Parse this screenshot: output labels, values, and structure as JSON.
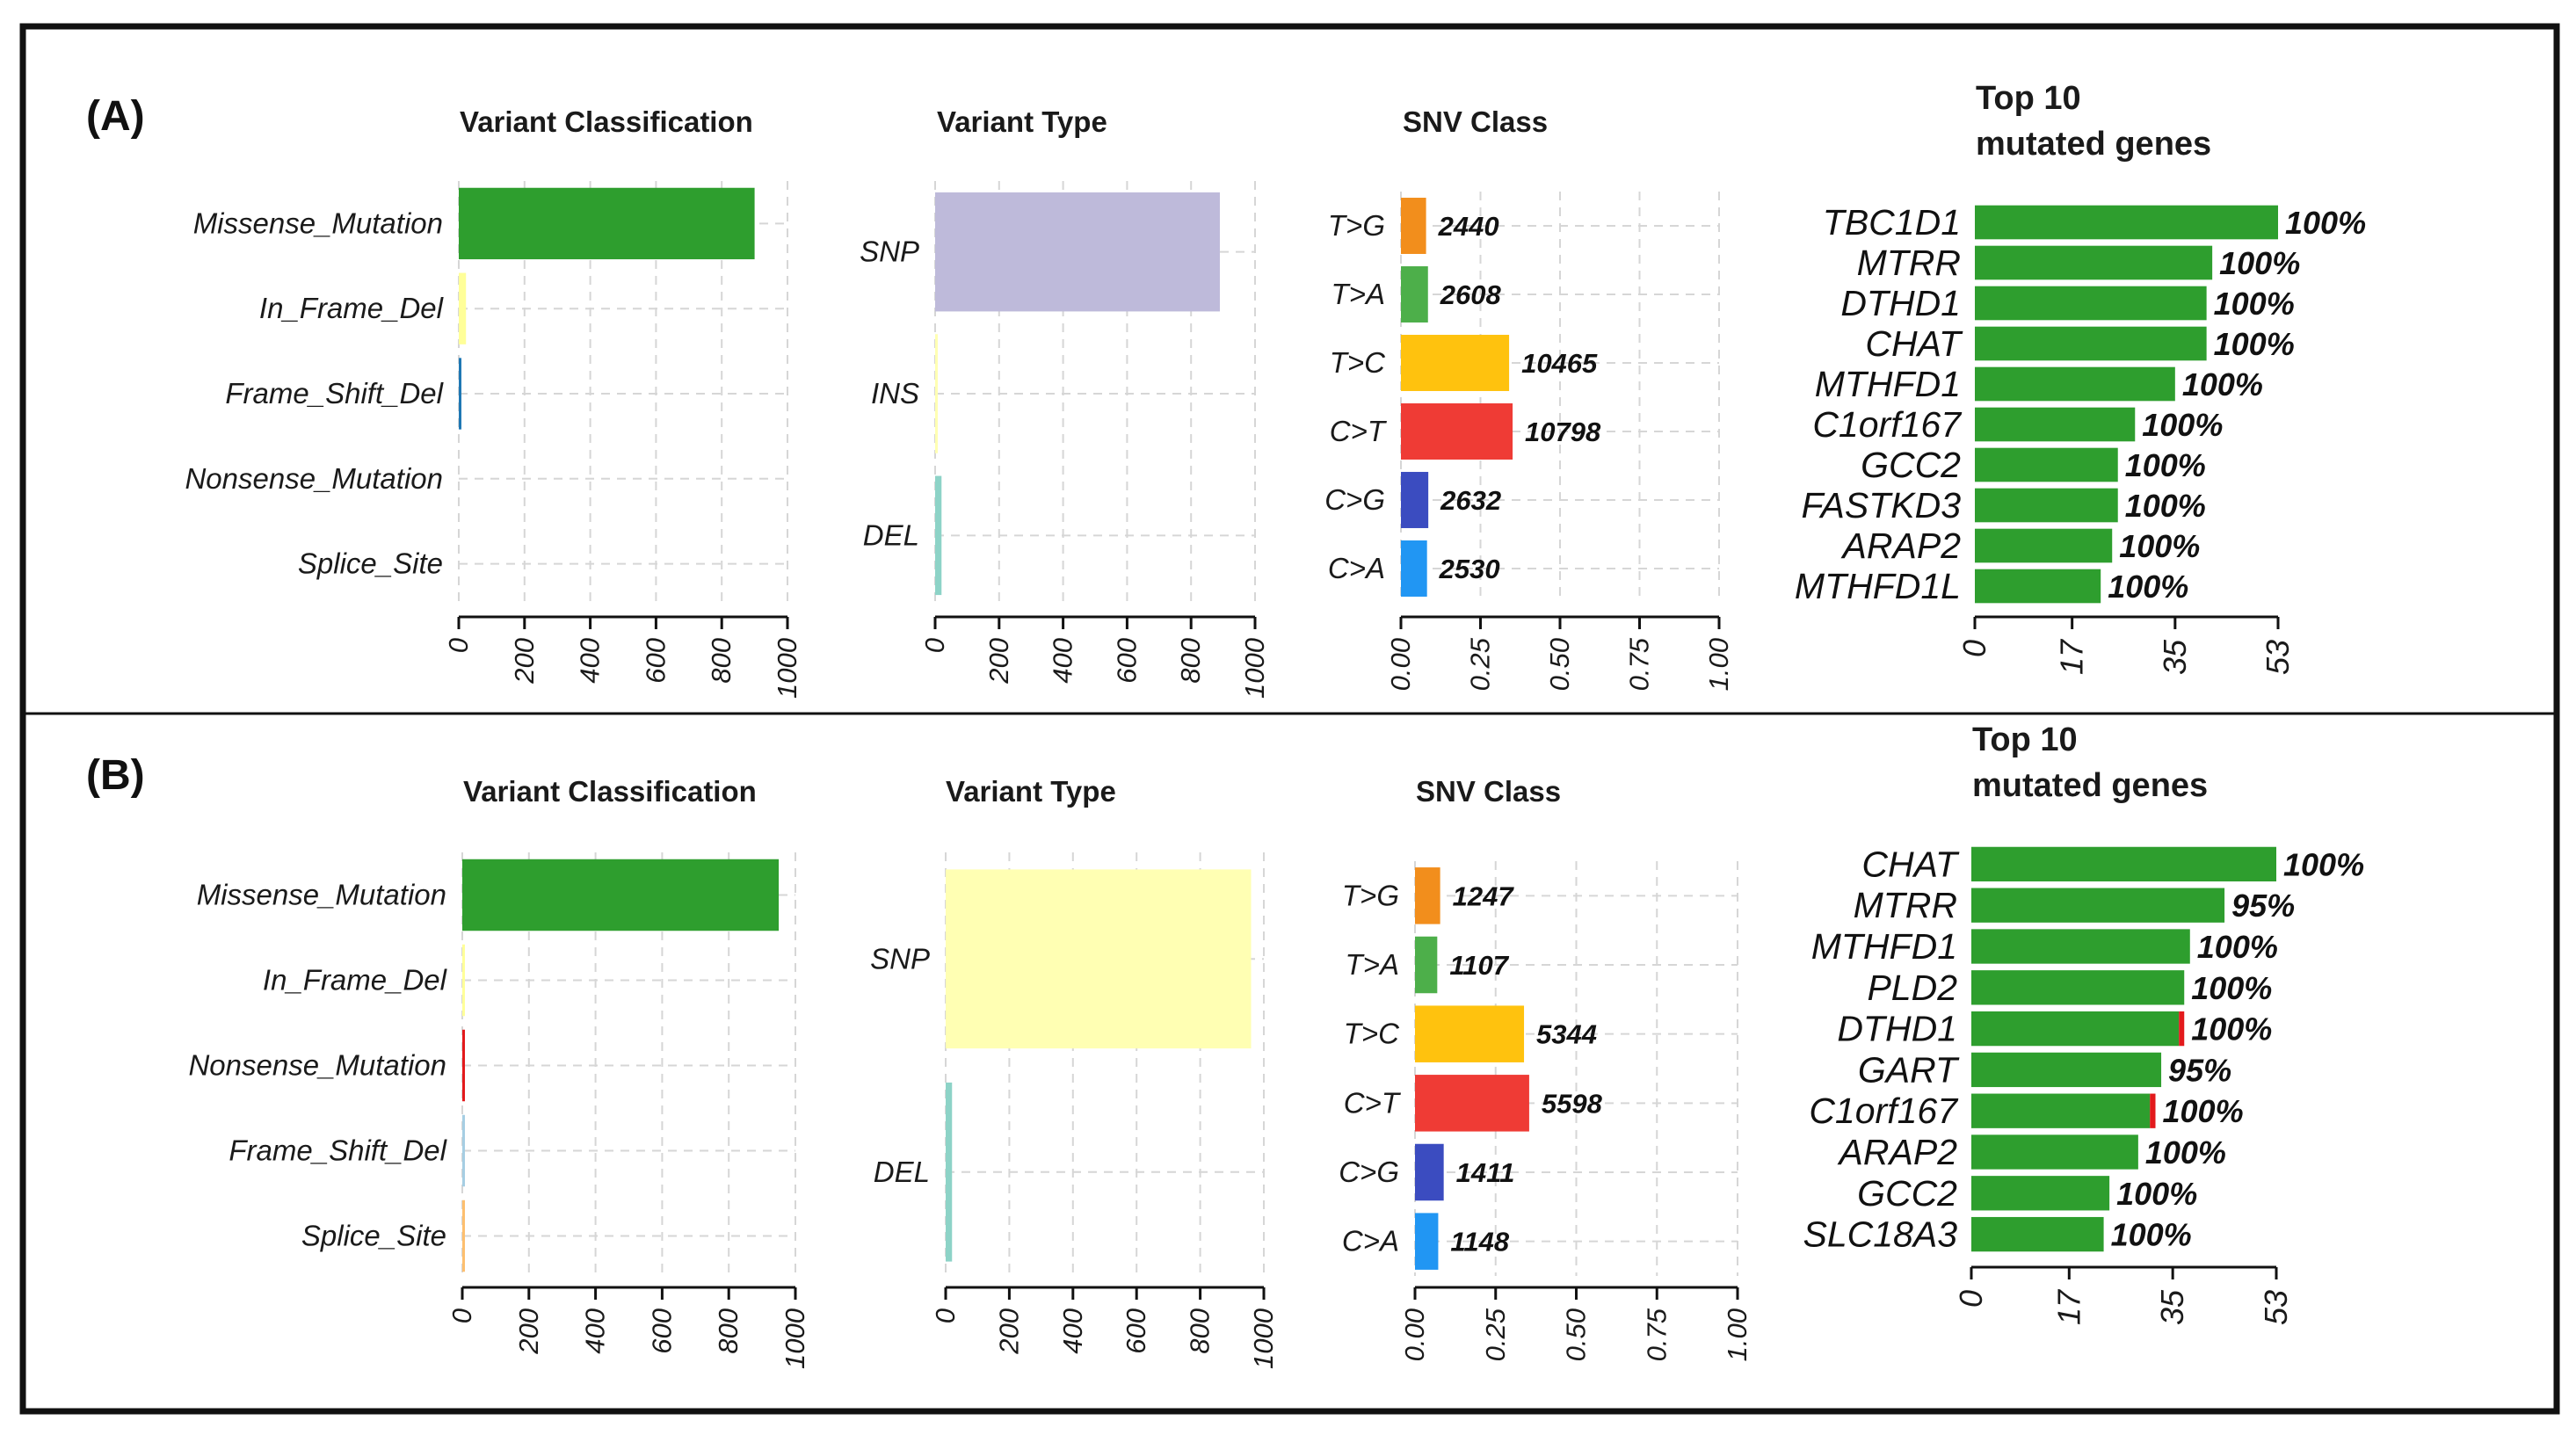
{
  "panels": [
    {
      "label": "(A)",
      "variant_classification": {
        "title": "Variant Classification",
        "categories": [
          "Missense_Mutation",
          "In_Frame_Del",
          "Frame_Shift_Del",
          "Nonsense_Mutation",
          "Splice_Site"
        ],
        "values": [
          900,
          22,
          8,
          0,
          0
        ],
        "colors": [
          "#2e9e2e",
          "#ffff99",
          "#1f78b4",
          "#e31a1c",
          "#ff7f00"
        ],
        "ticks": [
          "0",
          "200",
          "400",
          "600",
          "800",
          "1000"
        ],
        "xlim": [
          0,
          1000
        ]
      },
      "variant_type": {
        "title": "Variant Type",
        "categories": [
          "SNP",
          "INS",
          "DEL"
        ],
        "values": [
          890,
          1,
          20
        ],
        "colors": [
          "#bebada",
          "#ffffb3",
          "#8dd3c7"
        ],
        "ticks": [
          "0",
          "200",
          "400",
          "600",
          "800",
          "1000"
        ],
        "xlim": [
          0,
          1000
        ]
      },
      "snv_class": {
        "title": "SNV Class",
        "categories": [
          "T>G",
          "T>A",
          "T>C",
          "C>T",
          "C>G",
          "C>A"
        ],
        "counts": [
          "2440",
          "2608",
          "10465",
          "10798",
          "2632",
          "2530"
        ],
        "values": [
          0.079,
          0.085,
          0.34,
          0.351,
          0.086,
          0.082
        ],
        "colors": [
          "#f28e1c",
          "#4daf4a",
          "#ffc20e",
          "#ef3b35",
          "#3b4cc0",
          "#2196f3"
        ],
        "ticks": [
          "0.00",
          "0.25",
          "0.50",
          "0.75",
          "1.00"
        ],
        "xlim": [
          0,
          1
        ]
      },
      "top_genes": {
        "title_line1": "Top 10",
        "title_line2": "mutated genes",
        "genes": [
          "TBC1D1",
          "MTRR",
          "DTHD1",
          "CHAT",
          "MTHFD1",
          "C1orf167",
          "GCC2",
          "FASTKD3",
          "ARAP2",
          "MTHFD1L"
        ],
        "values": [
          53,
          41.5,
          40.5,
          40.5,
          35,
          28,
          25,
          25,
          24,
          22
        ],
        "labels": [
          "100%",
          "100%",
          "100%",
          "100%",
          "100%",
          "100%",
          "100%",
          "100%",
          "100%",
          "100%"
        ],
        "red_fraction": [
          0,
          0,
          0,
          0,
          0,
          0,
          0,
          0,
          0,
          0
        ],
        "ticks": [
          "0",
          "17",
          "35",
          "53"
        ],
        "xlim": [
          0,
          53
        ]
      }
    },
    {
      "label": "(B)",
      "variant_classification": {
        "title": "Variant Classification",
        "categories": [
          "Missense_Mutation",
          "In_Frame_Del",
          "Nonsense_Mutation",
          "Frame_Shift_Del",
          "Splice_Site"
        ],
        "values": [
          950,
          6,
          4,
          3,
          2
        ],
        "colors": [
          "#2e9e2e",
          "#ffff99",
          "#e31a1c",
          "#a6cee3",
          "#fdbf6f"
        ],
        "ticks": [
          "0",
          "200",
          "400",
          "600",
          "800",
          "1000"
        ],
        "xlim": [
          0,
          1000
        ]
      },
      "variant_type": {
        "title": "Variant Type",
        "categories": [
          "SNP",
          "DEL"
        ],
        "values": [
          960,
          20
        ],
        "colors": [
          "#ffffb3",
          "#8dd3c7"
        ],
        "ticks": [
          "0",
          "200",
          "400",
          "600",
          "800",
          "1000"
        ],
        "xlim": [
          0,
          1000
        ]
      },
      "snv_class": {
        "title": "SNV Class",
        "categories": [
          "T>G",
          "T>A",
          "T>C",
          "C>T",
          "C>G",
          "C>A"
        ],
        "counts": [
          "1247",
          "1107",
          "5344",
          "5598",
          "1411",
          "1148"
        ],
        "values": [
          0.078,
          0.069,
          0.338,
          0.354,
          0.089,
          0.072
        ],
        "colors": [
          "#f28e1c",
          "#4daf4a",
          "#ffc20e",
          "#ef3b35",
          "#3b4cc0",
          "#2196f3"
        ],
        "ticks": [
          "0.00",
          "0.25",
          "0.50",
          "0.75",
          "1.00"
        ],
        "xlim": [
          0,
          1
        ]
      },
      "top_genes": {
        "title_line1": "Top 10",
        "title_line2": "mutated genes",
        "genes": [
          "CHAT",
          "MTRR",
          "MTHFD1",
          "PLD2",
          "DTHD1",
          "GART",
          "C1orf167",
          "ARAP2",
          "GCC2",
          "SLC18A3"
        ],
        "values": [
          53,
          44,
          38,
          37,
          37,
          33,
          32,
          29,
          24,
          23
        ],
        "labels": [
          "100%",
          "95%",
          "100%",
          "100%",
          "100%",
          "95%",
          "100%",
          "100%",
          "100%",
          "100%"
        ],
        "red_fraction": [
          0,
          0,
          0,
          0,
          0.025,
          0,
          0.03,
          0,
          0,
          0
        ],
        "ticks": [
          "0",
          "17",
          "35",
          "53"
        ],
        "xlim": [
          0,
          53
        ]
      }
    }
  ],
  "chart_data": [
    {
      "type": "bar",
      "title": "Variant Classification",
      "categories": [
        "Missense_Mutation",
        "In_Frame_Del",
        "Frame_Shift_Del",
        "Nonsense_Mutation",
        "Splice_Site"
      ],
      "values": [
        900,
        22,
        8,
        0,
        0
      ],
      "xlim": [
        0,
        1000
      ]
    },
    {
      "type": "bar",
      "title": "Variant Type",
      "categories": [
        "SNP",
        "INS",
        "DEL"
      ],
      "values": [
        890,
        1,
        20
      ],
      "xlim": [
        0,
        1000
      ]
    },
    {
      "type": "bar",
      "title": "SNV Class",
      "categories": [
        "T>G",
        "T>A",
        "T>C",
        "C>T",
        "C>G",
        "C>A"
      ],
      "values": [
        0.079,
        0.085,
        0.34,
        0.351,
        0.086,
        0.082
      ],
      "data_labels": [
        "2440",
        "2608",
        "10465",
        "10798",
        "2632",
        "2530"
      ],
      "xlim": [
        0,
        1
      ]
    },
    {
      "type": "bar",
      "title": "Top 10 mutated genes",
      "categories": [
        "TBC1D1",
        "MTRR",
        "DTHD1",
        "CHAT",
        "MTHFD1",
        "C1orf167",
        "GCC2",
        "FASTKD3",
        "ARAP2",
        "MTHFD1L"
      ],
      "values": [
        53,
        41.5,
        40.5,
        40.5,
        35,
        28,
        25,
        25,
        24,
        22
      ],
      "data_labels": [
        "100%",
        "100%",
        "100%",
        "100%",
        "100%",
        "100%",
        "100%",
        "100%",
        "100%",
        "100%"
      ],
      "xlim": [
        0,
        53
      ]
    },
    {
      "type": "bar",
      "title": "Variant Classification",
      "categories": [
        "Missense_Mutation",
        "In_Frame_Del",
        "Nonsense_Mutation",
        "Frame_Shift_Del",
        "Splice_Site"
      ],
      "values": [
        950,
        6,
        4,
        3,
        2
      ],
      "xlim": [
        0,
        1000
      ]
    },
    {
      "type": "bar",
      "title": "Variant Type",
      "categories": [
        "SNP",
        "DEL"
      ],
      "values": [
        960,
        20
      ],
      "xlim": [
        0,
        1000
      ]
    },
    {
      "type": "bar",
      "title": "SNV Class",
      "categories": [
        "T>G",
        "T>A",
        "T>C",
        "C>T",
        "C>G",
        "C>A"
      ],
      "values": [
        0.078,
        0.069,
        0.338,
        0.354,
        0.089,
        0.072
      ],
      "data_labels": [
        "1247",
        "1107",
        "5344",
        "5598",
        "1411",
        "1148"
      ],
      "xlim": [
        0,
        1
      ]
    },
    {
      "type": "bar",
      "title": "Top 10 mutated genes",
      "categories": [
        "CHAT",
        "MTRR",
        "MTHFD1",
        "PLD2",
        "DTHD1",
        "GART",
        "C1orf167",
        "ARAP2",
        "GCC2",
        "SLC18A3"
      ],
      "values": [
        53,
        44,
        38,
        37,
        37,
        33,
        32,
        29,
        24,
        23
      ],
      "data_labels": [
        "100%",
        "95%",
        "100%",
        "100%",
        "100%",
        "95%",
        "100%",
        "100%",
        "100%",
        "100%"
      ],
      "xlim": [
        0,
        53
      ]
    }
  ]
}
